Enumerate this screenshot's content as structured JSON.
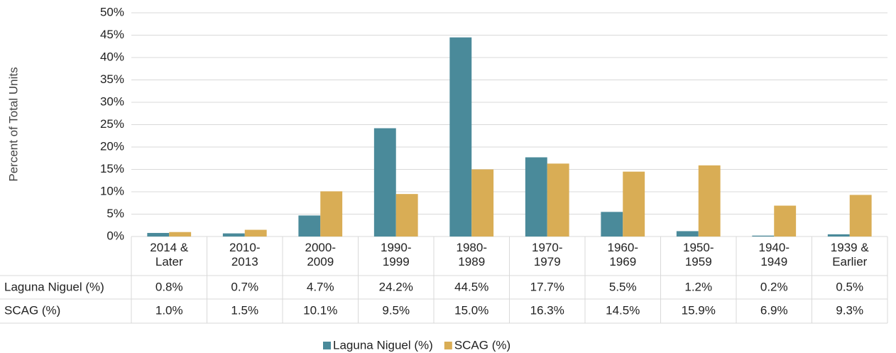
{
  "chart_data": {
    "type": "bar",
    "y_axis_title": "Percent of Total Units",
    "categories": [
      "2014 & Later",
      "2010-2013",
      "2000-2009",
      "1990-1999",
      "1980-1989",
      "1970-1979",
      "1960-1969",
      "1950-1959",
      "1940-1949",
      "1939 & Earlier"
    ],
    "series": [
      {
        "name": "Laguna Niguel (%)",
        "color": "#4a8a9a",
        "values": [
          0.8,
          0.7,
          4.7,
          24.2,
          44.5,
          17.7,
          5.5,
          1.2,
          0.2,
          0.5
        ],
        "value_labels": [
          "0.8%",
          "0.7%",
          "4.7%",
          "24.2%",
          "44.5%",
          "17.7%",
          "5.5%",
          "1.2%",
          "0.2%",
          "0.5%"
        ]
      },
      {
        "name": "SCAG (%)",
        "color": "#d9ad55",
        "values": [
          1.0,
          1.5,
          10.1,
          9.5,
          15.0,
          16.3,
          14.5,
          15.9,
          6.9,
          9.3
        ],
        "value_labels": [
          "1.0%",
          "1.5%",
          "10.1%",
          "9.5%",
          "15.0%",
          "16.3%",
          "14.5%",
          "15.9%",
          "6.9%",
          "9.3%"
        ]
      }
    ],
    "ylim": [
      0,
      50
    ],
    "yticks": [
      {
        "value": 0,
        "label": "0%"
      },
      {
        "value": 5,
        "label": "5%"
      },
      {
        "value": 10,
        "label": "10%"
      },
      {
        "value": 15,
        "label": "15%"
      },
      {
        "value": 20,
        "label": "20%"
      },
      {
        "value": 25,
        "label": "25%"
      },
      {
        "value": 30,
        "label": "30%"
      },
      {
        "value": 35,
        "label": "35%"
      },
      {
        "value": 40,
        "label": "40%"
      },
      {
        "value": 45,
        "label": "45%"
      },
      {
        "value": 50,
        "label": "50%"
      }
    ],
    "grid": true
  }
}
